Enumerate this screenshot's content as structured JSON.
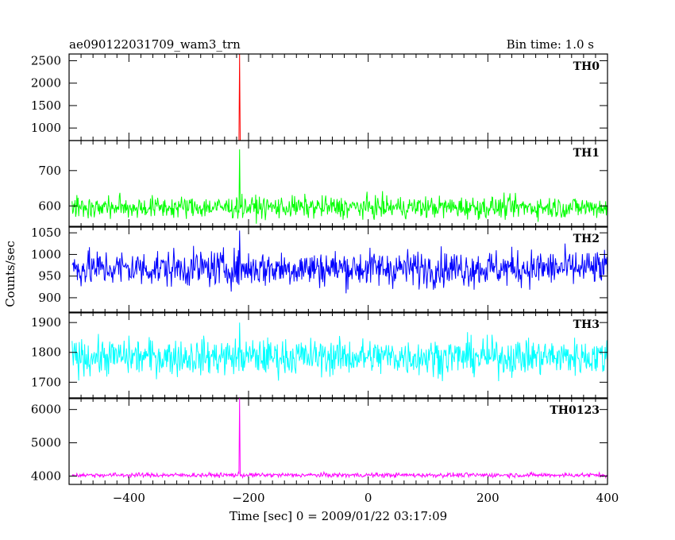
{
  "header": {
    "title": "ae090122031709_wam3_trn",
    "bin_time": "Bin time: 1.0 s"
  },
  "axes": {
    "xlabel": "Time [sec] 0 = 2009/01/22 03:17:09",
    "ylabel": "Counts/sec"
  },
  "chart_data": {
    "type": "line",
    "x_range": [
      -500,
      400
    ],
    "x_tick_labels": [
      "−400",
      "−200",
      "0",
      "200",
      "400"
    ],
    "x_tick_values": [
      -400,
      -200,
      0,
      200,
      400
    ],
    "x_start": -500,
    "x_end": 400,
    "series": [
      {
        "name": "TH0",
        "color": "#ff0000",
        "ylim": [
          720,
          2650
        ],
        "ticks": [
          1000,
          1500,
          2000,
          2500
        ],
        "tick_labels": [
          "1000",
          "1500",
          "2000",
          "2500"
        ],
        "mean": 660,
        "noise": 18,
        "spike_x": -215,
        "spike_y": 2650
      },
      {
        "name": "TH1",
        "color": "#00ff00",
        "ylim": [
          540,
          785
        ],
        "ticks": [
          600,
          700
        ],
        "tick_labels": [
          "600",
          "700"
        ],
        "mean": 596,
        "noise": 28,
        "spike_x": -215,
        "spike_y": 760
      },
      {
        "name": "TH2",
        "color": "#0000ff",
        "ylim": [
          865,
          1065
        ],
        "ticks": [
          900,
          950,
          1000,
          1050
        ],
        "tick_labels": [
          "900",
          "950",
          "1000",
          "1050"
        ],
        "mean": 968,
        "noise": 38,
        "spike_x": -215,
        "spike_y": 1055
      },
      {
        "name": "TH3",
        "color": "#00ffff",
        "ylim": [
          1645,
          1935
        ],
        "ticks": [
          1700,
          1800,
          1900
        ],
        "tick_labels": [
          "1700",
          "1800",
          "1900"
        ],
        "mean": 1785,
        "noise": 55,
        "spike_x": -215,
        "spike_y": 1900
      },
      {
        "name": "TH0123",
        "color": "#ff00ff",
        "ylim": [
          3750,
          6350
        ],
        "ticks": [
          4000,
          5000,
          6000
        ],
        "tick_labels": [
          "4000",
          "5000",
          "6000"
        ],
        "mean": 4030,
        "noise": 60,
        "spike_x": -215,
        "spike_y": 6350
      }
    ]
  }
}
